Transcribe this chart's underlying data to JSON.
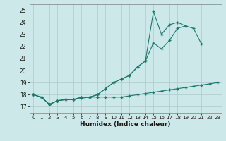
{
  "x": [
    0,
    1,
    2,
    3,
    4,
    5,
    6,
    7,
    8,
    9,
    10,
    11,
    12,
    13,
    14,
    15,
    16,
    17,
    18,
    19,
    20,
    21,
    22,
    23
  ],
  "line1": [
    18.0,
    17.8,
    17.2,
    17.5,
    17.6,
    17.6,
    17.7,
    17.8,
    17.8,
    17.8,
    17.8,
    17.8,
    17.9,
    18.0,
    18.1,
    18.2,
    18.3,
    18.4,
    18.5,
    18.6,
    18.7,
    18.8,
    18.9,
    19.0
  ],
  "line2": [
    18.0,
    17.8,
    17.2,
    17.5,
    17.6,
    17.6,
    17.8,
    17.8,
    18.0,
    18.5,
    19.0,
    19.3,
    19.6,
    20.3,
    20.8,
    22.3,
    21.8,
    22.5,
    23.5,
    23.7,
    23.5,
    22.2,
    null,
    null
  ],
  "line3": [
    18.0,
    17.8,
    17.2,
    17.5,
    17.6,
    17.6,
    17.8,
    17.8,
    18.0,
    18.5,
    19.0,
    19.3,
    19.6,
    20.3,
    20.8,
    24.9,
    23.0,
    23.8,
    24.0,
    23.7,
    null,
    null,
    null,
    null
  ],
  "color": "#1a7a6a",
  "bg_color": "#cce8e8",
  "grid_color": "#aacccc",
  "xlabel": "Humidex (Indice chaleur)",
  "xlim": [
    -0.5,
    23.5
  ],
  "ylim": [
    16.5,
    25.5
  ],
  "yticks": [
    17,
    18,
    19,
    20,
    21,
    22,
    23,
    24,
    25
  ],
  "xticks": [
    0,
    1,
    2,
    3,
    4,
    5,
    6,
    7,
    8,
    9,
    10,
    11,
    12,
    13,
    14,
    15,
    16,
    17,
    18,
    19,
    20,
    21,
    22,
    23
  ]
}
